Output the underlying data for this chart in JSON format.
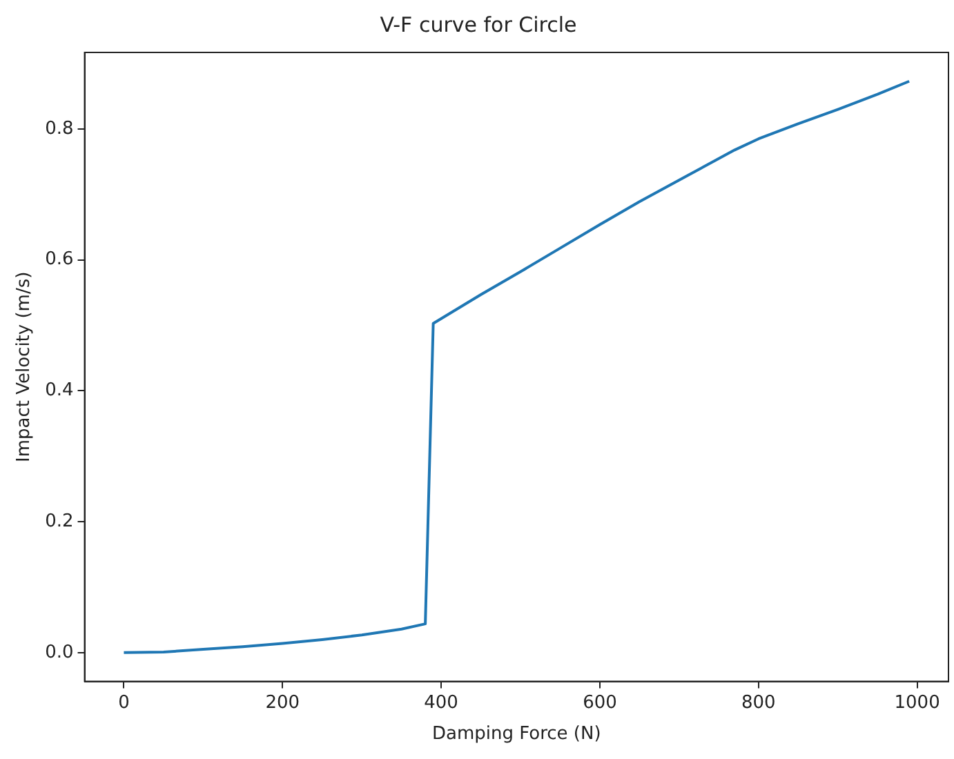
{
  "chart_data": {
    "type": "line",
    "title": "V-F curve for Circle",
    "xlabel": "Damping Force (N)",
    "ylabel": "Impact Velocity (m/s)",
    "x": [
      0,
      50,
      100,
      150,
      200,
      250,
      300,
      350,
      380,
      390,
      450,
      500,
      550,
      600,
      650,
      700,
      770,
      800,
      850,
      900,
      950,
      990
    ],
    "series": [
      {
        "color": "#1f77b4",
        "values": [
          0,
          0.001,
          0.005,
          0.009,
          0.014,
          0.02,
          0.027,
          0.036,
          0.044,
          0.503,
          0.547,
          0.582,
          0.618,
          0.654,
          0.689,
          0.722,
          0.768,
          0.785,
          0.808,
          0.83,
          0.853,
          0.873
        ]
      }
    ],
    "xlim": [
      -49.5,
      1039.5
    ],
    "xticks": [
      0,
      200,
      400,
      600,
      800,
      1000
    ],
    "ylim": [
      -0.044,
      0.917
    ],
    "yticks": [
      {
        "value": 0,
        "label": "0.0"
      },
      {
        "value": 0.2,
        "label": "0.2"
      },
      {
        "value": 0.4,
        "label": "0.4"
      },
      {
        "value": 0.6,
        "label": "0.6"
      },
      {
        "value": 0.8,
        "label": "0.8"
      }
    ],
    "grid": false,
    "legend": false,
    "marker": "none",
    "line_style": "solid"
  }
}
